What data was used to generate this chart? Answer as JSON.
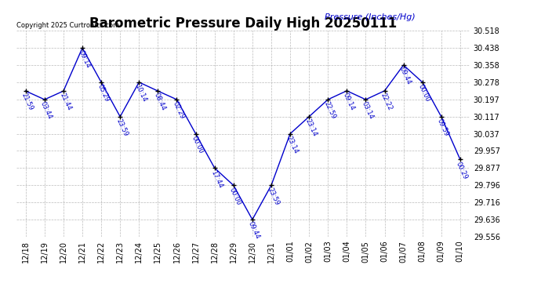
{
  "title": "Barometric Pressure Daily High 20250111",
  "ylabel": "Pressure (Inches/Hg)",
  "copyright": "Copyright 2025 Curtronics.com",
  "line_color": "#0000cc",
  "marker_color": "#000000",
  "label_color": "#0000cc",
  "background_color": "#ffffff",
  "grid_color": "#aaaaaa",
  "title_color": "#000000",
  "ylim_min": 29.556,
  "ylim_max": 30.518,
  "yticks": [
    29.556,
    29.636,
    29.716,
    29.796,
    29.877,
    29.957,
    30.037,
    30.117,
    30.197,
    30.278,
    30.358,
    30.438,
    30.518
  ],
  "dates": [
    "12/18",
    "12/19",
    "12/20",
    "12/21",
    "12/22",
    "12/23",
    "12/24",
    "12/25",
    "12/26",
    "12/27",
    "12/28",
    "12/29",
    "12/30",
    "12/31",
    "01/01",
    "01/02",
    "01/03",
    "01/04",
    "01/05",
    "01/06",
    "01/07",
    "01/08",
    "01/09",
    "01/10"
  ],
  "values": [
    30.237,
    30.197,
    30.237,
    30.438,
    30.278,
    30.117,
    30.278,
    30.237,
    30.197,
    30.037,
    29.877,
    29.796,
    29.636,
    29.796,
    30.037,
    30.117,
    30.197,
    30.238,
    30.197,
    30.238,
    30.358,
    30.278,
    30.117,
    29.917
  ],
  "time_labels": [
    "21:59",
    "03:44",
    "21:44",
    "09:14",
    "05:29",
    "23:59",
    "10:14",
    "08:44",
    "02:29",
    "00:00",
    "17:44",
    "00:00",
    "09:44",
    "23:59",
    "23:14",
    "23:14",
    "22:59",
    "09:14",
    "03:14",
    "22:22",
    "09:44",
    "00:00",
    "09:59",
    "00:29"
  ],
  "title_fontsize": 12,
  "tick_fontsize": 7,
  "ylabel_fontsize": 8,
  "timelabel_fontsize": 6,
  "copyright_fontsize": 6
}
